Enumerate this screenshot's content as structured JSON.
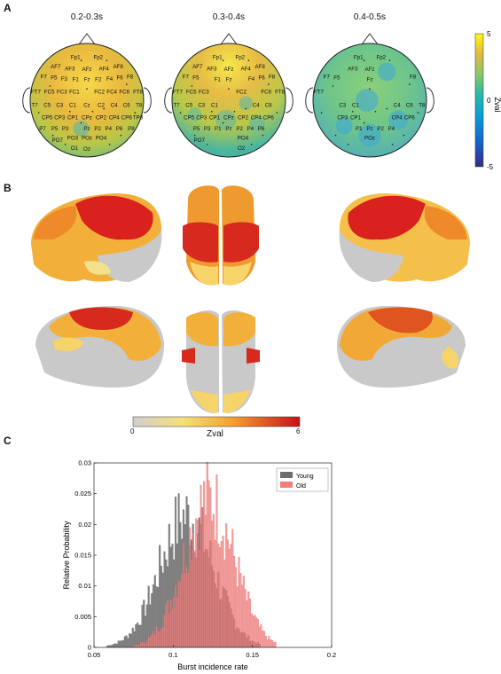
{
  "panels": {
    "a": "A",
    "b": "B",
    "c": "C"
  },
  "topomaps": [
    {
      "title": "0.2-0.3s",
      "labels": [
        "Fp1",
        "Fp2",
        "AF7",
        "AF3",
        "AFz",
        "AF4",
        "AF8",
        "F7",
        "F5",
        "F3",
        "F1",
        "Fz",
        "F2",
        "F4",
        "F6",
        "F8",
        "FT7",
        "FC5",
        "FC3",
        "FC1",
        "FC2",
        "FC4",
        "FC6",
        "FT8",
        "T7",
        "C5",
        "C3",
        "C1",
        "Cz",
        "C2",
        "C4",
        "C6",
        "T8",
        "CP5",
        "CP3",
        "CP1",
        "CPz",
        "CP2",
        "CP4",
        "CP6",
        "TP8",
        "P7",
        "P5",
        "P3",
        "Pz",
        "P2",
        "P4",
        "P6",
        "P8",
        "PO3",
        "POz",
        "PO4",
        "PO7",
        "O1",
        "Oz"
      ]
    },
    {
      "title": "0.3-0.4s",
      "labels": [
        "Fp1",
        "Fp2",
        "AF7",
        "AF3",
        "AFz",
        "AF4",
        "AF8",
        "F7",
        "F5",
        "F1",
        "Fz",
        "F4",
        "F6",
        "F8",
        "FT7",
        "FC5",
        "FC3",
        "FC2",
        "FC6",
        "FT8",
        "T7",
        "C5",
        "C3",
        "C1",
        "C4",
        "C6",
        "CP5",
        "CP3",
        "CP1",
        "CPz",
        "CP2",
        "CP4",
        "CP6",
        "P5",
        "P3",
        "P1",
        "Pz",
        "P2",
        "P4",
        "P6",
        "PO7",
        "PO4",
        "O2"
      ]
    },
    {
      "title": "0.4-0.5s",
      "labels": [
        "Fp1",
        "Fp2",
        "AF3",
        "AFz",
        "F7",
        "F5",
        "Fz",
        "F8",
        "FT7",
        "C3",
        "C1",
        "C4",
        "C6",
        "T8",
        "CP3",
        "CP1",
        "CP4",
        "CP6",
        "P1",
        "Pz",
        "P2",
        "P4",
        "POz"
      ]
    }
  ],
  "topo_colorbar": {
    "label": "Zval",
    "ticks": [
      "5",
      "0",
      "-5"
    ]
  },
  "brain_colorbar": {
    "label": "Zval",
    "ticks": [
      "0",
      "6"
    ]
  },
  "colors": {
    "young": "#6e6e6e",
    "old": "#f08080",
    "young_edge": "#555555",
    "old_edge": "#d9534f"
  },
  "chart_data": {
    "type": "bar",
    "subtype": "overlapping-histogram",
    "xlabel": "Burst incidence rate",
    "ylabel": "Relative Probability",
    "xlim": [
      0.05,
      0.2
    ],
    "ylim": [
      0,
      0.03
    ],
    "xticks": [
      "0.05",
      "0.1",
      "0.15",
      "0.2"
    ],
    "yticks": [
      "0",
      "0.005",
      "0.01",
      "0.015",
      "0.02",
      "0.025",
      "0.03"
    ],
    "legend_position": "top-right",
    "bin_width": 0.001,
    "series": [
      {
        "name": "Young",
        "distribution": "approximately normal",
        "mean": 0.108,
        "sd": 0.017,
        "peak": 0.023,
        "range": [
          0.058,
          0.155
        ]
      },
      {
        "name": "Old",
        "distribution": "approximately normal",
        "mean": 0.122,
        "sd": 0.016,
        "peak": 0.026,
        "range": [
          0.075,
          0.165
        ]
      }
    ]
  }
}
